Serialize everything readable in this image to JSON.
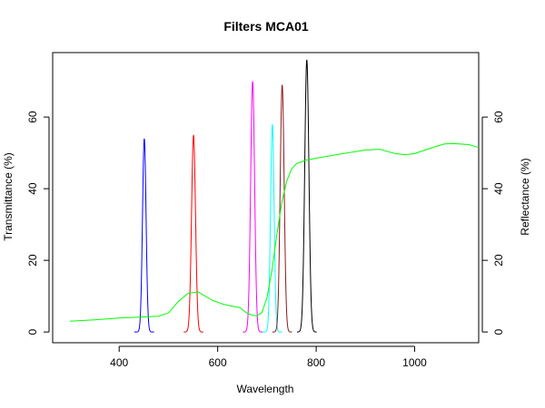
{
  "chart_data": {
    "type": "line",
    "title": "Filters MCA01",
    "xlabel": "Wavelength",
    "ylabel_left": "Transmittance (%)",
    "ylabel_right": "Reflectance (%)",
    "xlim": [
      265,
      1130
    ],
    "ylim": [
      -3,
      78
    ],
    "x_ticks": [
      400,
      600,
      800,
      1000
    ],
    "y_ticks": [
      0,
      20,
      40,
      60
    ],
    "grid": false,
    "filter_series": [
      {
        "center": 451,
        "peak": 54,
        "fwhm": 8.5,
        "color": "#0000ff"
      },
      {
        "center": 551,
        "peak": 55,
        "fwhm": 9.5,
        "color": "#ff0000"
      },
      {
        "center": 671,
        "peak": 70,
        "fwhm": 9.5,
        "color": "#ff00ff"
      },
      {
        "center": 711,
        "peak": 58,
        "fwhm": 8.5,
        "color": "#00ffff"
      },
      {
        "center": 731,
        "peak": 69,
        "fwhm": 9.5,
        "color": "#8b1a1a"
      },
      {
        "center": 781,
        "peak": 76,
        "fwhm": 10,
        "color": "#000000"
      }
    ],
    "reflectance_series": {
      "color": "#00ff00",
      "points": [
        [
          300,
          3.0
        ],
        [
          350,
          3.4
        ],
        [
          400,
          3.9
        ],
        [
          450,
          4.2
        ],
        [
          480,
          4.4
        ],
        [
          500,
          5.3
        ],
        [
          520,
          8.5
        ],
        [
          540,
          10.8
        ],
        [
          560,
          11.2
        ],
        [
          575,
          10.0
        ],
        [
          590,
          8.8
        ],
        [
          610,
          7.8
        ],
        [
          630,
          7.2
        ],
        [
          645,
          6.8
        ],
        [
          660,
          5.2
        ],
        [
          670,
          4.7
        ],
        [
          680,
          4.5
        ],
        [
          690,
          5.5
        ],
        [
          700,
          9.5
        ],
        [
          710,
          17.0
        ],
        [
          720,
          27.0
        ],
        [
          730,
          36.0
        ],
        [
          740,
          42.0
        ],
        [
          750,
          45.5
        ],
        [
          760,
          47.0
        ],
        [
          780,
          48.0
        ],
        [
          800,
          48.5
        ],
        [
          850,
          49.7
        ],
        [
          900,
          50.8
        ],
        [
          930,
          51.0
        ],
        [
          960,
          49.8
        ],
        [
          980,
          49.5
        ],
        [
          1000,
          49.8
        ],
        [
          1030,
          51.2
        ],
        [
          1060,
          52.5
        ],
        [
          1080,
          52.6
        ],
        [
          1110,
          52.3
        ],
        [
          1130,
          51.5
        ]
      ]
    }
  }
}
